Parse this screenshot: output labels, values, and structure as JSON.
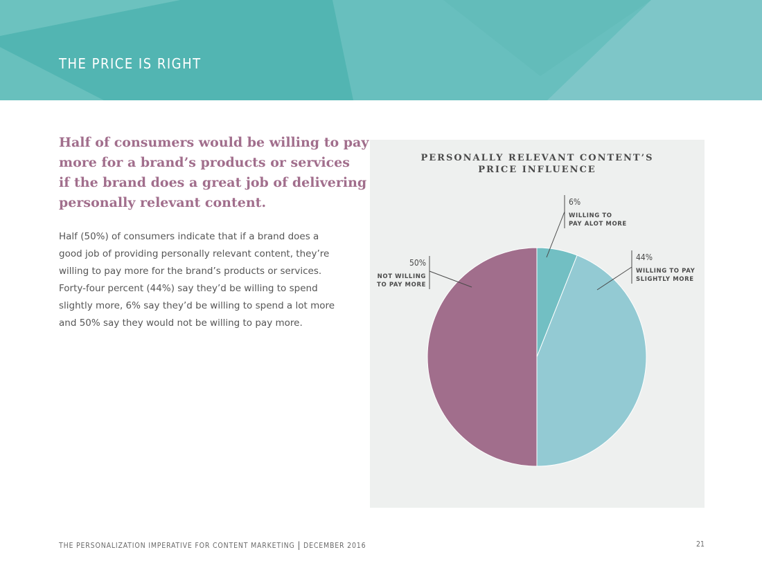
{
  "header": {
    "title": "THE PRICE IS RIGHT"
  },
  "headline": [
    "Half of consumers would be willing to pay",
    "more for a brand’s products or services",
    "if the brand does a great job of delivering",
    "personally relevant content."
  ],
  "body": [
    "Half (50%) of consumers indicate that if a brand does a",
    "good job of providing personally relevant content, they’re",
    "willing to pay more for the brand’s products or services.",
    "Forty-four percent (44%) say they’d be willing to spend",
    "slightly more, 6% say they’d be willing to spend a lot more",
    "and 50% say they would not be willing to pay more."
  ],
  "footer": {
    "left": "THE PERSONALIZATION IMPERATIVE FOR CONTENT MARKETING",
    "separator": "|",
    "right": "DECEMBER 2016",
    "page": "21"
  },
  "colors": {
    "banner": "#5ab9b6",
    "headline": "#a16e8c",
    "slice_alot": "#72bfc3",
    "slice_slightly": "#93cad3",
    "slice_not": "#a16e8c",
    "panel": "#eef0ef"
  },
  "chart_data": {
    "type": "pie",
    "title_lines": [
      "PERSONALLY RELEVANT CONTENT’S",
      "PRICE INFLUENCE"
    ],
    "slices": [
      {
        "pct_label": "6%",
        "label_lines": [
          "WILLING TO",
          "PAY ALOT MORE"
        ],
        "value": 6,
        "color": "#72bfc3"
      },
      {
        "pct_label": "44%",
        "label_lines": [
          "WILLING TO PAY",
          "SLIGHTLY MORE"
        ],
        "value": 44,
        "color": "#93cad3"
      },
      {
        "pct_label": "50%",
        "label_lines": [
          "NOT WILLING",
          "TO PAY MORE"
        ],
        "value": 50,
        "color": "#a16e8c"
      }
    ],
    "legend": "none",
    "grid": false
  }
}
